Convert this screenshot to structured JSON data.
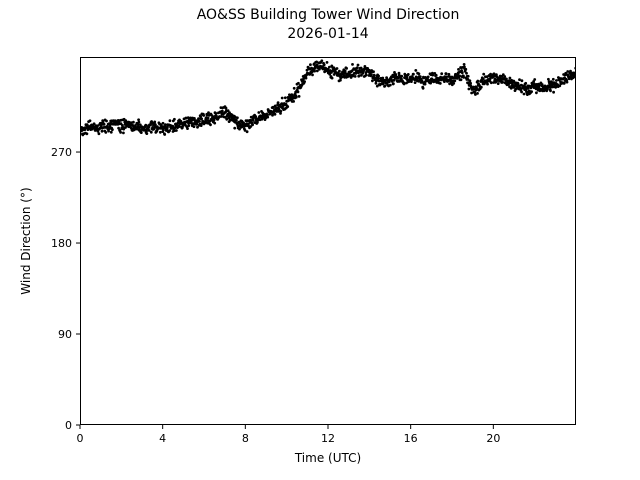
{
  "figure": {
    "title": "AO&SS Building Tower Wind Direction",
    "subtitle": "2026-01-14",
    "xlabel": "Time (UTC)",
    "ylabel": "Wind Direction (°)"
  },
  "chart_data": {
    "type": "scatter",
    "title": "AO&SS Building Tower Wind Direction",
    "subtitle": "2026-01-14",
    "xlabel": "Time (UTC)",
    "ylabel": "Wind Direction (°)",
    "xlim": [
      0,
      24
    ],
    "ylim": [
      0,
      364
    ],
    "xticks": [
      0,
      4,
      8,
      12,
      16,
      20
    ],
    "yticks": [
      0,
      90,
      180,
      270
    ],
    "grid": false,
    "legend": "none",
    "marker_color": "#000000",
    "marker_size": 1.4,
    "points_per_hour": 60,
    "noise_deg": 3,
    "trend": [
      [
        0,
        292
      ],
      [
        0.3,
        294
      ],
      [
        0.7,
        295
      ],
      [
        1,
        294
      ],
      [
        1.3,
        296
      ],
      [
        1.7,
        297
      ],
      [
        2,
        296
      ],
      [
        2.3,
        298
      ],
      [
        2.6,
        295
      ],
      [
        3,
        292
      ],
      [
        3.3,
        294
      ],
      [
        3.7,
        295
      ],
      [
        4,
        293
      ],
      [
        4.3,
        294
      ],
      [
        4.7,
        296
      ],
      [
        5,
        298
      ],
      [
        5.3,
        299
      ],
      [
        5.7,
        300
      ],
      [
        6,
        301
      ],
      [
        6.3,
        303
      ],
      [
        6.6,
        305
      ],
      [
        6.9,
        309
      ],
      [
        7.1,
        310
      ],
      [
        7.4,
        303
      ],
      [
        7.6,
        298
      ],
      [
        7.9,
        297
      ],
      [
        8.2,
        298
      ],
      [
        8.5,
        303
      ],
      [
        8.8,
        305
      ],
      [
        9,
        307
      ],
      [
        9.3,
        310
      ],
      [
        9.6,
        313
      ],
      [
        9.9,
        318
      ],
      [
        10.2,
        323
      ],
      [
        10.5,
        330
      ],
      [
        10.8,
        340
      ],
      [
        11,
        348
      ],
      [
        11.2,
        353
      ],
      [
        11.5,
        356
      ],
      [
        11.8,
        352
      ],
      [
        12,
        351
      ],
      [
        12.3,
        349
      ],
      [
        12.6,
        347
      ],
      [
        13,
        348
      ],
      [
        13.3,
        350
      ],
      [
        13.6,
        349
      ],
      [
        13.9,
        352
      ],
      [
        14.1,
        347
      ],
      [
        14.4,
        341
      ],
      [
        14.7,
        338
      ],
      [
        15,
        341
      ],
      [
        15.3,
        343
      ],
      [
        15.6,
        341
      ],
      [
        16,
        342
      ],
      [
        16.3,
        344
      ],
      [
        16.6,
        340
      ],
      [
        17,
        343
      ],
      [
        17.3,
        341
      ],
      [
        17.6,
        344
      ],
      [
        18,
        340
      ],
      [
        18.3,
        346
      ],
      [
        18.6,
        351
      ],
      [
        18.8,
        340
      ],
      [
        19,
        331
      ],
      [
        19.2,
        334
      ],
      [
        19.5,
        339
      ],
      [
        19.8,
        342
      ],
      [
        20,
        343
      ],
      [
        20.3,
        342
      ],
      [
        20.6,
        340
      ],
      [
        21,
        338
      ],
      [
        21.3,
        335
      ],
      [
        21.6,
        332
      ],
      [
        22,
        335
      ],
      [
        22.3,
        333
      ],
      [
        22.6,
        334
      ],
      [
        23,
        337
      ],
      [
        23.3,
        340
      ],
      [
        23.6,
        344
      ],
      [
        24,
        349
      ]
    ]
  }
}
